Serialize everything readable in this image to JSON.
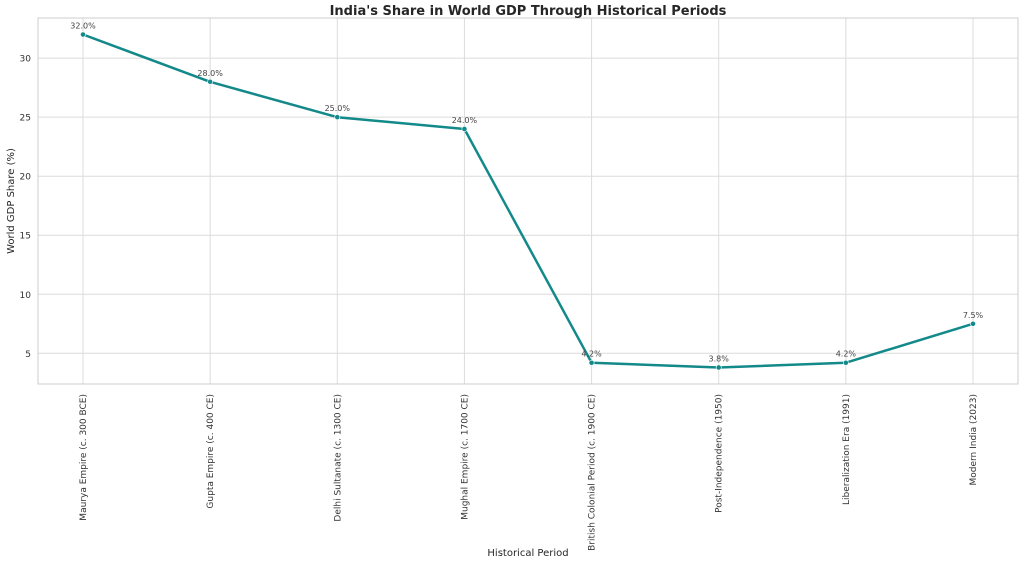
{
  "chart_data": {
    "type": "line",
    "title": "India's Share in World GDP Through Historical Periods",
    "xlabel": "Historical Period",
    "ylabel": "World GDP Share (%)",
    "categories": [
      "Maurya Empire (c. 300 BCE)",
      "Gupta Empire (c. 400 CE)",
      "Delhi Sultanate (c. 1300 CE)",
      "Mughal Empire (c. 1700 CE)",
      "British Colonial Period (c. 1900 CE)",
      "Post-Independence (1950)",
      "Liberalization Era (1991)",
      "Modern India (2023)"
    ],
    "series": [
      {
        "values": [
          32.0,
          28.0,
          25.0,
          24.0,
          4.2,
          3.8,
          4.2,
          7.5
        ],
        "labels": [
          "32.0%",
          "28.0%",
          "25.0%",
          "24.0%",
          "4.2%",
          "3.8%",
          "4.2%",
          "7.5%"
        ],
        "color": "#13898a"
      }
    ],
    "yticks": [
      5,
      10,
      15,
      20,
      25,
      30
    ],
    "ylim": [
      2.4,
      33.4
    ],
    "grid": true,
    "legend": "none"
  }
}
